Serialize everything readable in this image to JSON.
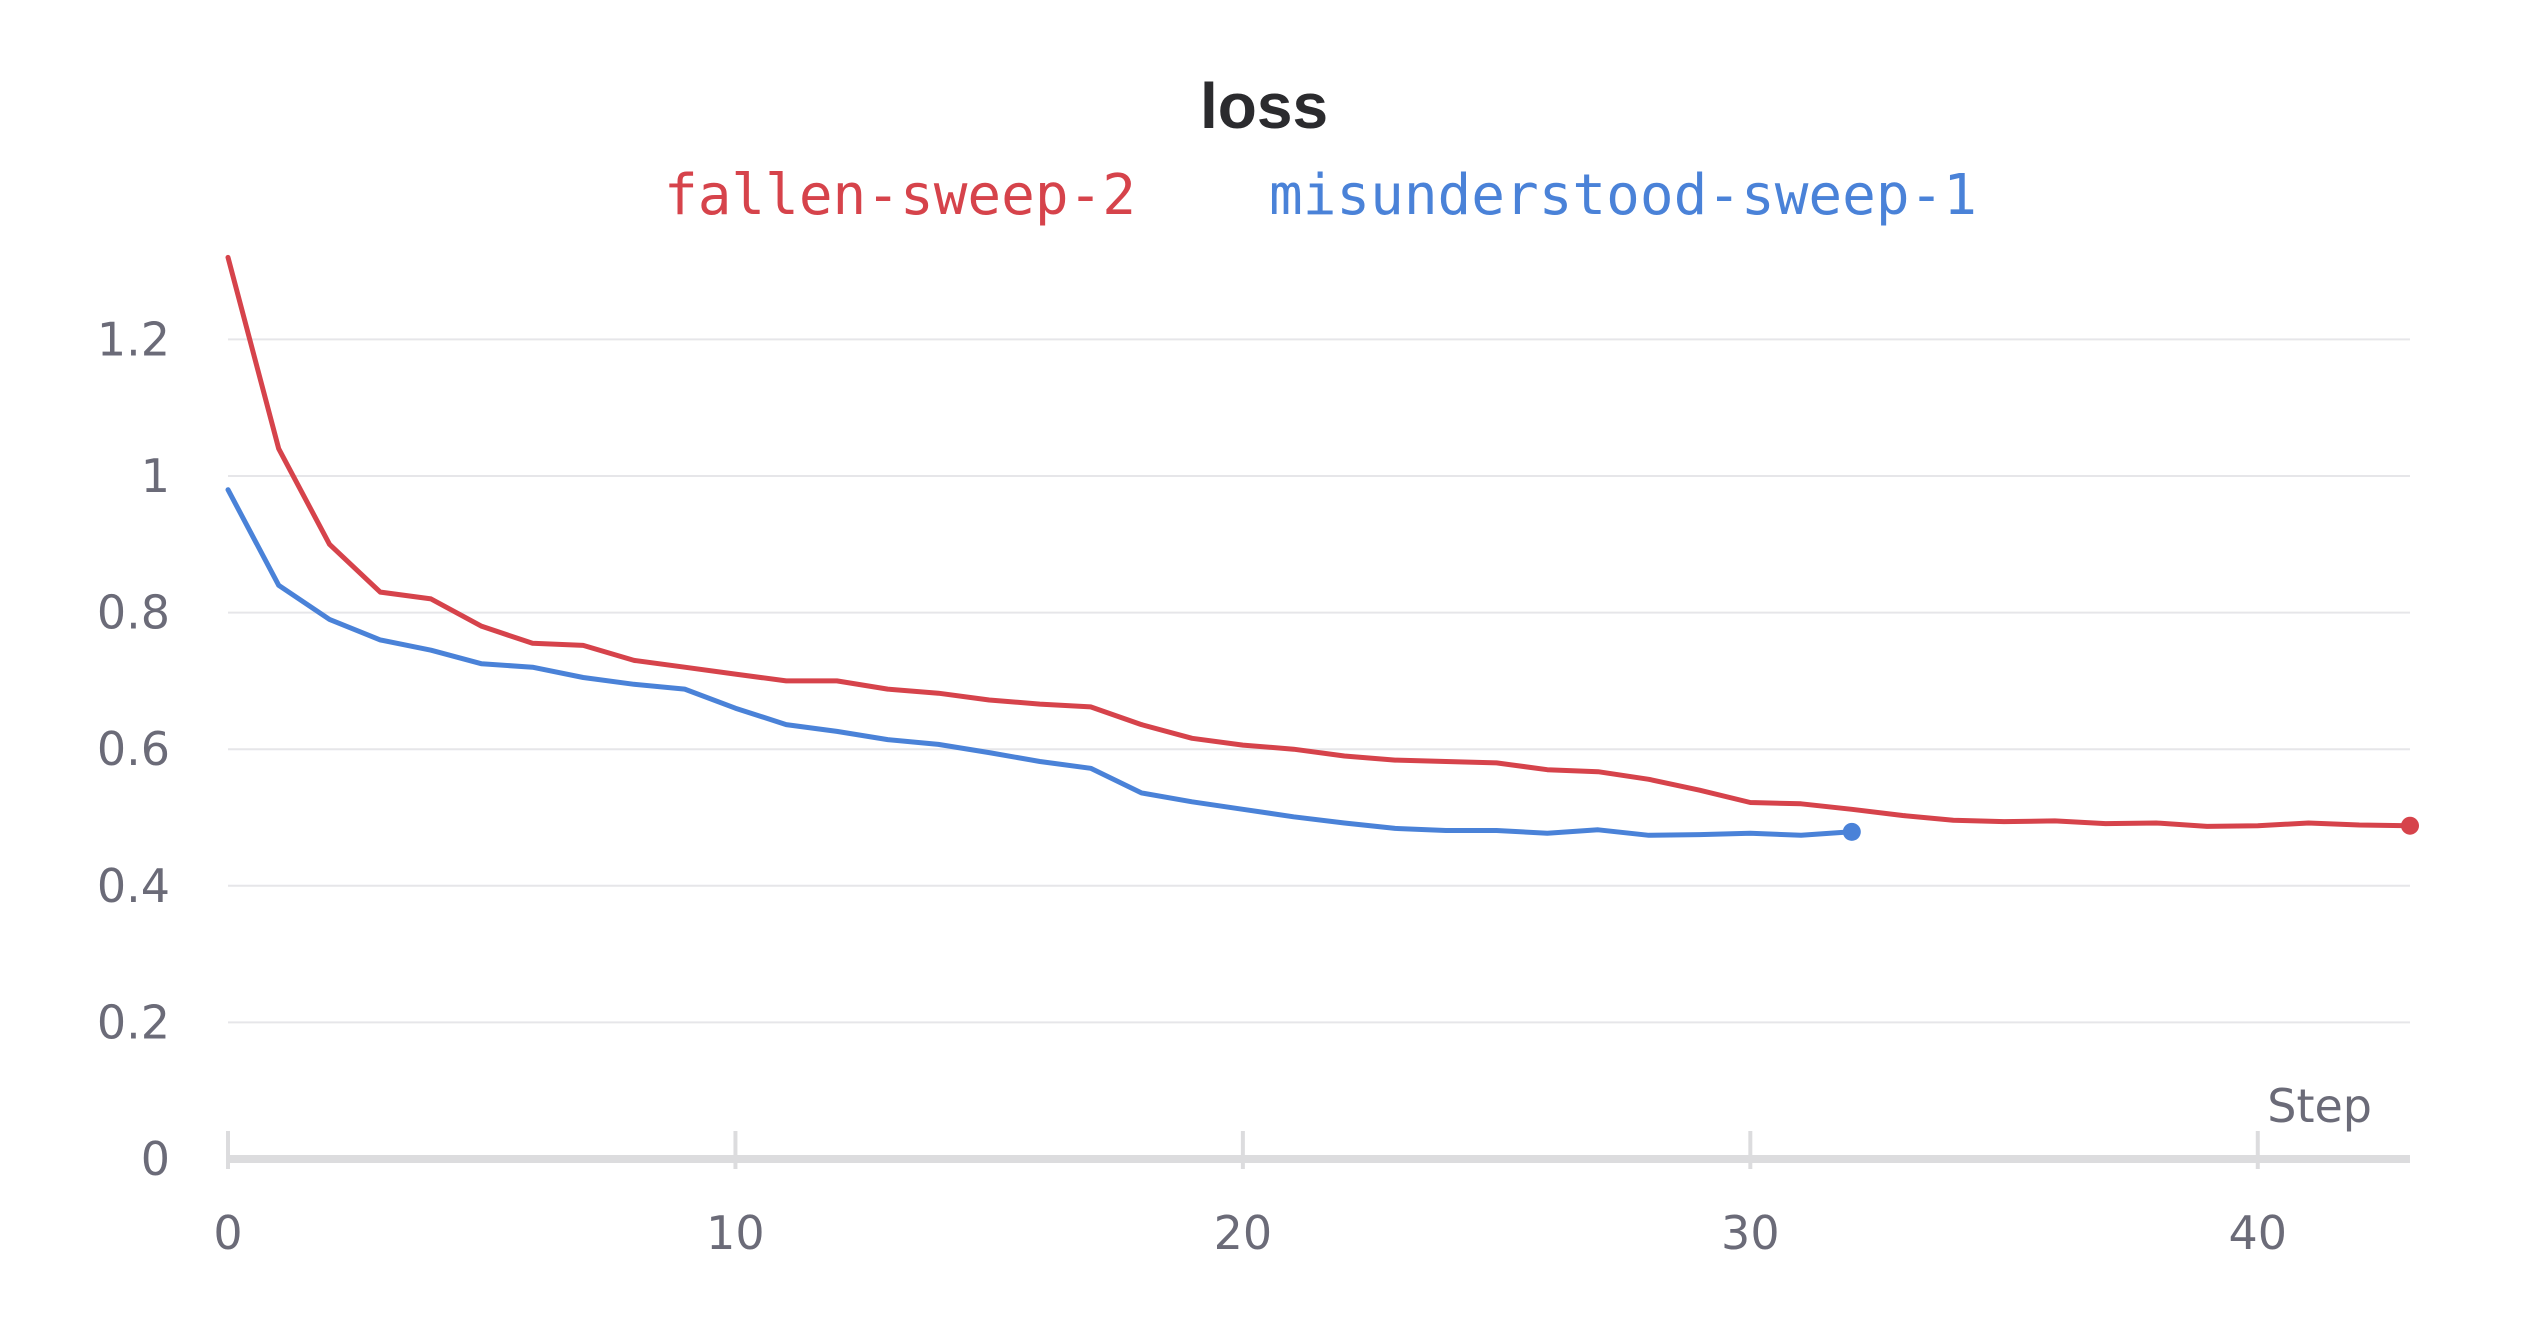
{
  "chart_data": {
    "type": "line",
    "title": "loss",
    "xlabel": "Step",
    "ylabel": "",
    "xlim": [
      0,
      43
    ],
    "ylim": [
      0,
      1.32
    ],
    "x_ticks": [
      0,
      10,
      20,
      30,
      40
    ],
    "x_tick_labels": [
      "0",
      "10",
      "20",
      "30",
      "40"
    ],
    "y_ticks": [
      0,
      0.2,
      0.4,
      0.6,
      0.8,
      1,
      1.2
    ],
    "y_tick_labels": [
      "0",
      "0.2",
      "0.4",
      "0.6",
      "0.8",
      "1",
      "1.2"
    ],
    "grid": true,
    "legend_position": "top-center",
    "series": [
      {
        "name": "fallen-sweep-2",
        "color": "#d6434b",
        "x": [
          0,
          1,
          2,
          3,
          4,
          5,
          6,
          7,
          8,
          9,
          10,
          11,
          12,
          13,
          14,
          15,
          16,
          17,
          18,
          19,
          20,
          21,
          22,
          23,
          24,
          25,
          26,
          27,
          28,
          29,
          30,
          31,
          32,
          33,
          34,
          35,
          36,
          37,
          38,
          39,
          40,
          41,
          42,
          43
        ],
        "y": [
          1.32,
          1.04,
          0.9,
          0.83,
          0.82,
          0.78,
          0.755,
          0.752,
          0.73,
          0.72,
          0.71,
          0.7,
          0.7,
          0.688,
          0.682,
          0.672,
          0.666,
          0.662,
          0.636,
          0.616,
          0.606,
          0.6,
          0.59,
          0.584,
          0.582,
          0.58,
          0.57,
          0.567,
          0.556,
          0.54,
          0.522,
          0.52,
          0.512,
          0.503,
          0.496,
          0.494,
          0.495,
          0.491,
          0.492,
          0.487,
          0.488,
          0.492,
          0.489,
          0.488
        ]
      },
      {
        "name": "misunderstood-sweep-1",
        "color": "#4a82d8",
        "x": [
          0,
          1,
          2,
          3,
          4,
          5,
          6,
          7,
          8,
          9,
          10,
          11,
          12,
          13,
          14,
          15,
          16,
          17,
          18,
          19,
          20,
          21,
          22,
          23,
          24,
          25,
          26,
          27,
          28,
          29,
          30,
          31,
          32
        ],
        "y": [
          0.98,
          0.84,
          0.79,
          0.76,
          0.745,
          0.725,
          0.72,
          0.705,
          0.695,
          0.688,
          0.66,
          0.636,
          0.626,
          0.614,
          0.607,
          0.595,
          0.582,
          0.572,
          0.536,
          0.523,
          0.512,
          0.501,
          0.492,
          0.484,
          0.481,
          0.481,
          0.477,
          0.482,
          0.474,
          0.475,
          0.477,
          0.474,
          0.479
        ]
      }
    ]
  }
}
